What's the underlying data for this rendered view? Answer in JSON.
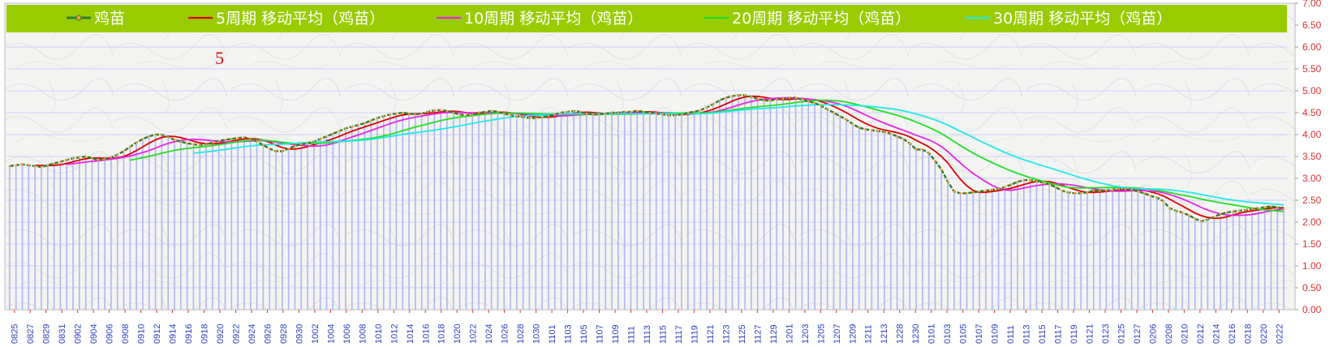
{
  "chart_data": {
    "type": "line",
    "title": "",
    "xlabel": "",
    "ylabel": "",
    "ylim": [
      0,
      7
    ],
    "yticks": [
      "0.00",
      "0.50",
      "1.00",
      "1.50",
      "2.00",
      "2.50",
      "3.00",
      "3.50",
      "4.00",
      "4.50",
      "5.00",
      "5.50",
      "6.00",
      "6.50",
      "7.00"
    ],
    "grid": true,
    "legend": "top",
    "annotation": "5",
    "x_tick_labels": [
      "0825",
      "0827",
      "0829",
      "0831",
      "0902",
      "0904",
      "0906",
      "0908",
      "0910",
      "0912",
      "0914",
      "0916",
      "0918",
      "0920",
      "0922",
      "0924",
      "0926",
      "0928",
      "0930",
      "1002",
      "1004",
      "1006",
      "1008",
      "1010",
      "1012",
      "1014",
      "1016",
      "1018",
      "1020",
      "1022",
      "1024",
      "1026",
      "1028",
      "1030",
      "1101",
      "1103",
      "1105",
      "1107",
      "1109",
      "1111",
      "1113",
      "1115",
      "1117",
      "1119",
      "1121",
      "1123",
      "1125",
      "1127",
      "1129",
      "1201",
      "1203",
      "1205",
      "1207",
      "1209",
      "1211",
      "1213",
      "1228",
      "1230",
      "0101",
      "0103",
      "0105",
      "0107",
      "0109",
      "0111",
      "0113",
      "0115",
      "0117",
      "0119",
      "0121",
      "0123",
      "0125",
      "0127",
      "0206",
      "0208",
      "0210",
      "0212",
      "0214",
      "0216",
      "0218",
      "0220",
      "0222"
    ],
    "series": [
      {
        "name": "鸡苗",
        "color": "#2e7d32",
        "marker_color": "#ff9a2e",
        "values": [
          3.28,
          3.3,
          3.32,
          3.3,
          3.28,
          3.26,
          3.3,
          3.34,
          3.38,
          3.42,
          3.46,
          3.48,
          3.5,
          3.46,
          3.42,
          3.44,
          3.48,
          3.54,
          3.62,
          3.72,
          3.82,
          3.9,
          3.96,
          4.0,
          4.0,
          3.94,
          3.88,
          3.84,
          3.8,
          3.78,
          3.76,
          3.78,
          3.82,
          3.86,
          3.88,
          3.9,
          3.92,
          3.94,
          3.9,
          3.84,
          3.76,
          3.68,
          3.62,
          3.62,
          3.68,
          3.74,
          3.78,
          3.8,
          3.84,
          3.9,
          3.96,
          4.02,
          4.08,
          4.14,
          4.18,
          4.22,
          4.26,
          4.32,
          4.38,
          4.42,
          4.46,
          4.48,
          4.5,
          4.48,
          4.46,
          4.48,
          4.52,
          4.55,
          4.56,
          4.54,
          4.5,
          4.46,
          4.44,
          4.46,
          4.5,
          4.52,
          4.54,
          4.52,
          4.48,
          4.44,
          4.42,
          4.4,
          4.38,
          4.38,
          4.4,
          4.42,
          4.46,
          4.5,
          4.52,
          4.54,
          4.52,
          4.48,
          4.46,
          4.46,
          4.48,
          4.5,
          4.5,
          4.52,
          4.52,
          4.54,
          4.52,
          4.5,
          4.48,
          4.46,
          4.44,
          4.44,
          4.46,
          4.5,
          4.52,
          4.56,
          4.62,
          4.7,
          4.78,
          4.84,
          4.88,
          4.9,
          4.9,
          4.86,
          4.82,
          4.78,
          4.78,
          4.8,
          4.82,
          4.84,
          4.84,
          4.8,
          4.76,
          4.72,
          4.66,
          4.58,
          4.5,
          4.42,
          4.34,
          4.24,
          4.16,
          4.12,
          4.1,
          4.08,
          4.06,
          4.02,
          3.96,
          3.9,
          3.8,
          3.66,
          3.66,
          3.58,
          3.4,
          3.2,
          2.92,
          2.7,
          2.66,
          2.66,
          2.68,
          2.7,
          2.72,
          2.74,
          2.76,
          2.8,
          2.86,
          2.92,
          2.96,
          2.96,
          2.94,
          2.9,
          2.86,
          2.8,
          2.72,
          2.68,
          2.66,
          2.66,
          2.68,
          2.72,
          2.72,
          2.72,
          2.74,
          2.76,
          2.76,
          2.74,
          2.7,
          2.66,
          2.6,
          2.56,
          2.48,
          2.32,
          2.26,
          2.22,
          2.16,
          2.08,
          2.02,
          2.06,
          2.12,
          2.18,
          2.22,
          2.24,
          2.26,
          2.28,
          2.3,
          2.32,
          2.34,
          2.36,
          2.34,
          2.3
        ]
      },
      {
        "name": "5周期 移动平均（鸡苗）",
        "color": "#dd0000",
        "period": 5
      },
      {
        "name": "10周期 移动平均（鸡苗）",
        "color": "#e626e6",
        "period": 10
      },
      {
        "name": "20周期 移动平均（鸡苗）",
        "color": "#22dd22",
        "period": 20
      },
      {
        "name": "30周期 移动平均（鸡苗）",
        "color": "#22e8e8",
        "period": 30
      }
    ]
  },
  "colors": {
    "legend_bg": "#99cc00",
    "bar": "#b0b4f4",
    "grid": "#ccd0ff",
    "plot_bg": "#f4f4f2",
    "axis_text_y": "#e03030",
    "axis_text_x": "#2f3fbf"
  }
}
